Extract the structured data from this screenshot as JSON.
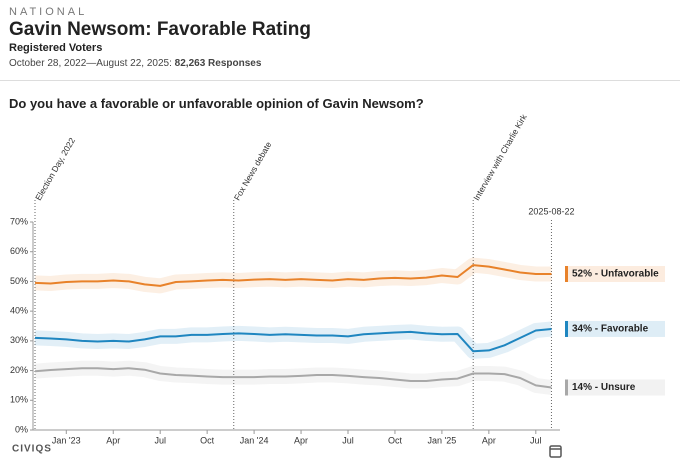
{
  "header": {
    "kicker": "NATIONAL",
    "title": "Gavin Newsom: Favorable Rating",
    "subtitle": "Registered Voters",
    "dates": "October 28, 2022—August 22, 2025:",
    "responses": "82,263 Responses"
  },
  "question": "Do you have a favorable or unfavorable opinion of Gavin Newsom?",
  "logo": "CIVIQS",
  "chart_data": {
    "type": "line",
    "categories": [
      null,
      null,
      "Jan '23",
      null,
      null,
      "Apr",
      null,
      null,
      "Jul",
      null,
      null,
      "Oct",
      null,
      null,
      "Jan '24",
      null,
      null,
      "Apr",
      null,
      null,
      "Jul",
      null,
      null,
      "Oct",
      null,
      null,
      "Jan '25",
      null,
      null,
      "Apr",
      null,
      null,
      "Jul",
      null
    ],
    "ylim": [
      0,
      70
    ],
    "yticks": [
      {
        "value": 0,
        "label": "0%"
      },
      {
        "value": 10,
        "label": "10%"
      },
      {
        "value": 20,
        "label": "20%"
      },
      {
        "value": 30,
        "label": "30%"
      },
      {
        "value": 40,
        "label": "40%"
      },
      {
        "value": 50,
        "label": "50%"
      },
      {
        "value": 60,
        "label": "60%"
      },
      {
        "value": 70,
        "label": "70%"
      }
    ],
    "annotations": [
      {
        "text": "Election Day, 2022",
        "x": 0
      },
      {
        "text": "Fox News debate",
        "x": 12.7
      },
      {
        "text": "Interview with Charlie Kirk",
        "x": 28
      },
      {
        "text": "2025-08-22",
        "x": 33
      }
    ],
    "series": [
      {
        "name": "Unfavorable",
        "label": "52% - Unfavorable",
        "color": "#e8822a",
        "values": [
          49.5,
          49.3,
          49.8,
          50,
          50,
          50.3,
          50,
          49,
          48.5,
          49.8,
          50,
          50.3,
          50.5,
          50.3,
          50.6,
          50.8,
          50.5,
          50.8,
          50.5,
          50.3,
          50.8,
          50.5,
          51,
          51.2,
          51,
          51.3,
          52,
          51.5,
          55.5,
          55,
          54,
          53,
          52.5,
          52.5
        ]
      },
      {
        "name": "Favorable",
        "label": "34% - Favorable",
        "color": "#1f86c0",
        "values": [
          31,
          30.8,
          30.5,
          30,
          29.8,
          30,
          29.8,
          30.5,
          31.5,
          31.5,
          32,
          32,
          32.3,
          32.5,
          32.3,
          32,
          32.2,
          32,
          31.8,
          31.8,
          31.5,
          32.2,
          32.5,
          32.8,
          33,
          32.5,
          32.2,
          32.3,
          26.5,
          26.8,
          28.5,
          31,
          33.5,
          34
        ]
      },
      {
        "name": "Unsure",
        "label": "14% - Unsure",
        "color": "#a8a8a8",
        "values": [
          19.8,
          20.2,
          20.5,
          20.8,
          20.8,
          20.5,
          20.8,
          20.3,
          19,
          18.5,
          18.3,
          18,
          17.8,
          17.8,
          17.8,
          18,
          18,
          18.2,
          18.5,
          18.5,
          18.2,
          17.8,
          17.5,
          17,
          16.5,
          16.5,
          17,
          17.3,
          19,
          19,
          18.8,
          17.5,
          15,
          14.3
        ]
      }
    ]
  }
}
